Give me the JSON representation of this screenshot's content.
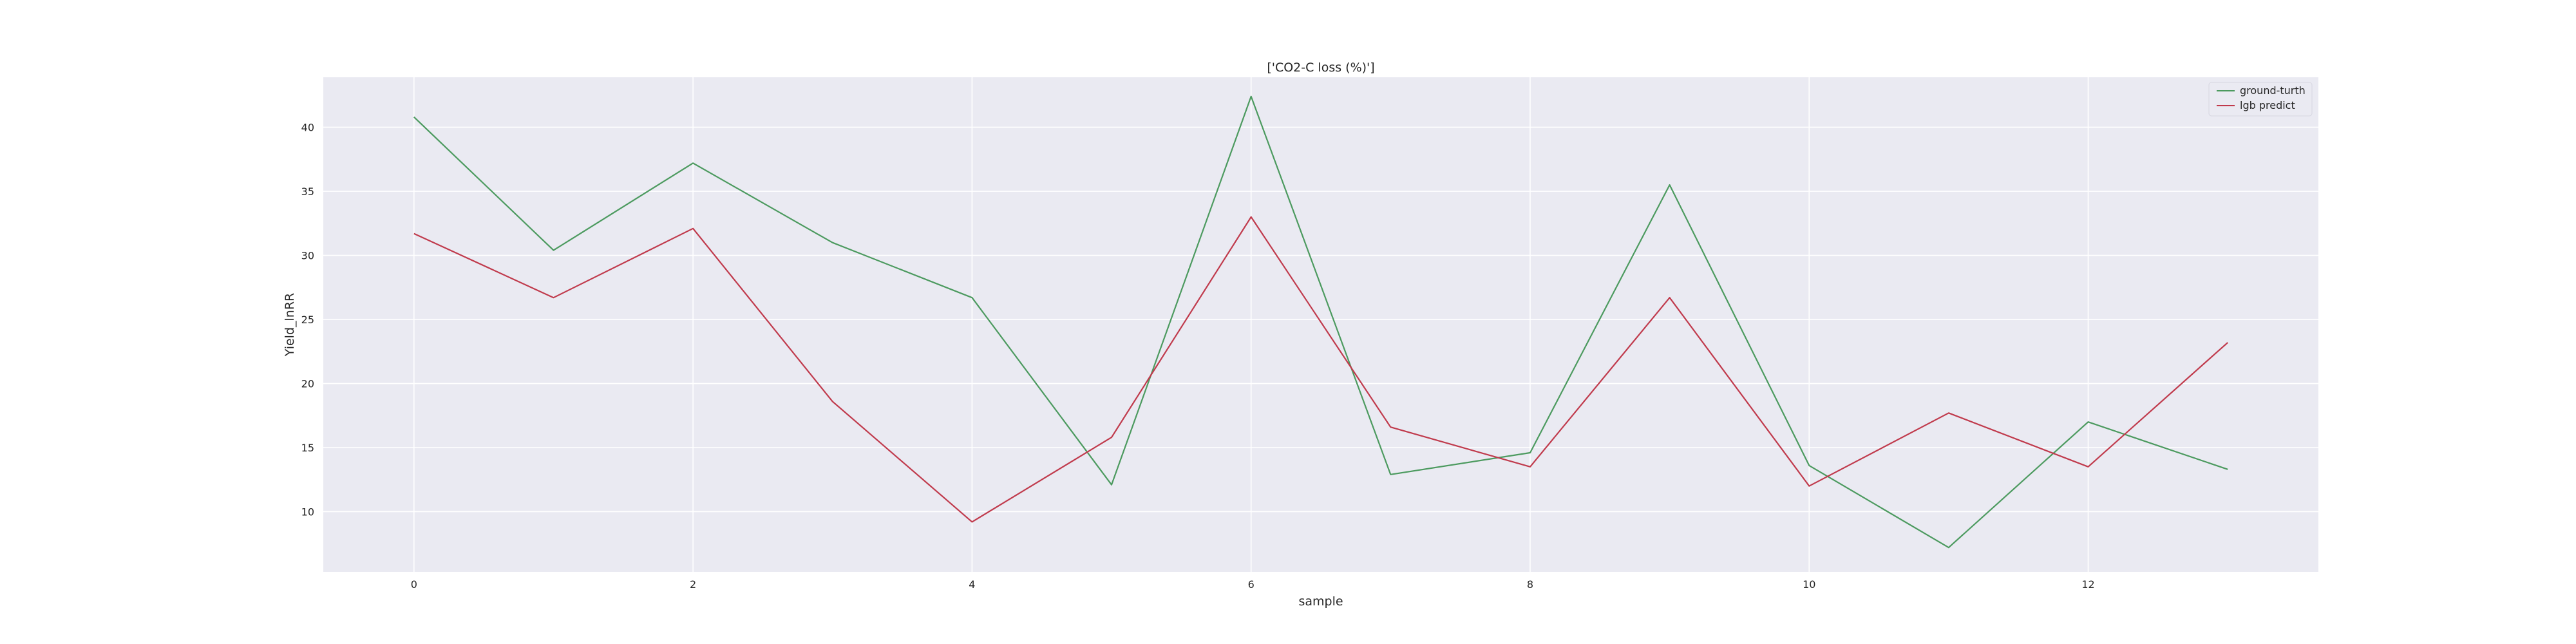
{
  "chart_data": {
    "type": "line",
    "title": "['CO2-C loss (%)']",
    "xlabel": "sample",
    "ylabel": "Yield_lnRR",
    "x": [
      0,
      1,
      2,
      3,
      4,
      5,
      6,
      7,
      8,
      9,
      10,
      11,
      12,
      13
    ],
    "xlim": [
      -0.65,
      13.65
    ],
    "ylim": [
      5.3,
      43.9
    ],
    "xticks": [
      0,
      2,
      4,
      6,
      8,
      10,
      12
    ],
    "yticks": [
      10,
      15,
      20,
      25,
      30,
      35,
      40
    ],
    "grid": true,
    "legend_position": "top-right",
    "series": [
      {
        "name": "ground-turth",
        "color": "#4c9a5f",
        "values": [
          40.8,
          30.4,
          37.2,
          31.0,
          26.7,
          12.1,
          42.4,
          12.9,
          14.6,
          35.5,
          13.6,
          7.2,
          17.0,
          13.3
        ]
      },
      {
        "name": "lgb predict",
        "color": "#c03a4c",
        "values": [
          31.7,
          26.7,
          32.1,
          18.6,
          9.2,
          15.8,
          33.0,
          16.6,
          13.5,
          26.7,
          12.0,
          17.7,
          13.5,
          23.2
        ]
      }
    ]
  }
}
